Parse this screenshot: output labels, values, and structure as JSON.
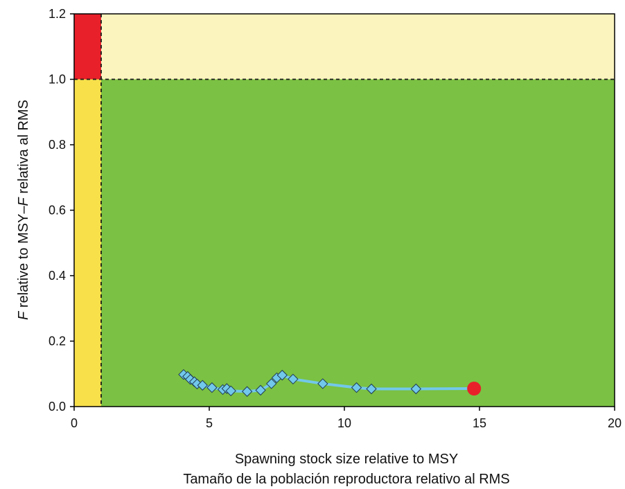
{
  "chart_data": {
    "type": "scatter",
    "xlabel_lines": [
      "Spawning stock size relative to MSY",
      "Tamaño de la población reproductora relativo al RMS"
    ],
    "ylabel_parts": [
      {
        "text": "F",
        "italic": true
      },
      {
        "text": " relative to MSY–",
        "italic": false
      },
      {
        "text": "F",
        "italic": true
      },
      {
        "text": " relativa al RMS",
        "italic": false
      }
    ],
    "xlim": [
      0,
      20
    ],
    "ylim": [
      0,
      1.2
    ],
    "x_ticks": [
      0,
      5,
      10,
      15,
      20
    ],
    "x_tick_labels": [
      "0",
      "5",
      "10",
      "15",
      "20"
    ],
    "y_ticks": [
      0,
      0.2,
      0.4,
      0.6,
      0.8,
      1.0,
      1.2
    ],
    "y_tick_labels": [
      "0.0",
      "0.2",
      "0.4",
      "0.6",
      "0.8",
      "1.0",
      "1.2"
    ],
    "reference_lines": {
      "x": 1.0,
      "y": 1.0
    },
    "zones": [
      {
        "name": "overfished-and-overfishing",
        "x": [
          0,
          1
        ],
        "y": [
          1,
          1.2
        ],
        "color": "#e8202a"
      },
      {
        "name": "overfishing-only",
        "x": [
          1,
          20
        ],
        "y": [
          1,
          1.2
        ],
        "color": "#fbf4bf"
      },
      {
        "name": "overfished-only",
        "x": [
          0,
          1
        ],
        "y": [
          0,
          1
        ],
        "color": "#f8e04b"
      },
      {
        "name": "healthy",
        "x": [
          1,
          20
        ],
        "y": [
          0,
          1
        ],
        "color": "#7bc143"
      }
    ],
    "series": [
      {
        "marker": "diamond",
        "color": "#72c8ea",
        "points": [
          {
            "x": 4.05,
            "y": 0.098
          },
          {
            "x": 4.2,
            "y": 0.092
          },
          {
            "x": 4.3,
            "y": 0.083
          },
          {
            "x": 4.45,
            "y": 0.076
          },
          {
            "x": 4.55,
            "y": 0.069
          },
          {
            "x": 4.75,
            "y": 0.065
          },
          {
            "x": 5.1,
            "y": 0.058
          },
          {
            "x": 5.5,
            "y": 0.052
          },
          {
            "x": 5.65,
            "y": 0.055
          },
          {
            "x": 5.8,
            "y": 0.048
          },
          {
            "x": 6.4,
            "y": 0.046
          },
          {
            "x": 6.9,
            "y": 0.05
          },
          {
            "x": 7.3,
            "y": 0.07
          },
          {
            "x": 7.5,
            "y": 0.088
          },
          {
            "x": 7.7,
            "y": 0.096
          },
          {
            "x": 8.1,
            "y": 0.084
          },
          {
            "x": 9.2,
            "y": 0.07
          },
          {
            "x": 10.45,
            "y": 0.058
          },
          {
            "x": 11.0,
            "y": 0.054
          },
          {
            "x": 12.65,
            "y": 0.054
          }
        ]
      }
    ],
    "current_point": {
      "x": 14.8,
      "y": 0.055,
      "color": "#e8202a",
      "marker": "circle"
    }
  }
}
